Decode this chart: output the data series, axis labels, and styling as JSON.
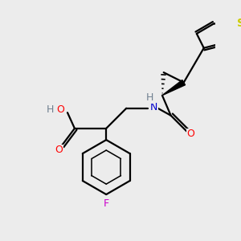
{
  "background_color": "#ececec",
  "atom_colors": {
    "C": "#000000",
    "H": "#708090",
    "O": "#ff0000",
    "N": "#0000cd",
    "S": "#cccc00",
    "F": "#cc00cc"
  },
  "bond_color": "#000000",
  "bond_width": 1.6,
  "fig_width": 3.0,
  "fig_height": 3.0,
  "dpi": 100
}
